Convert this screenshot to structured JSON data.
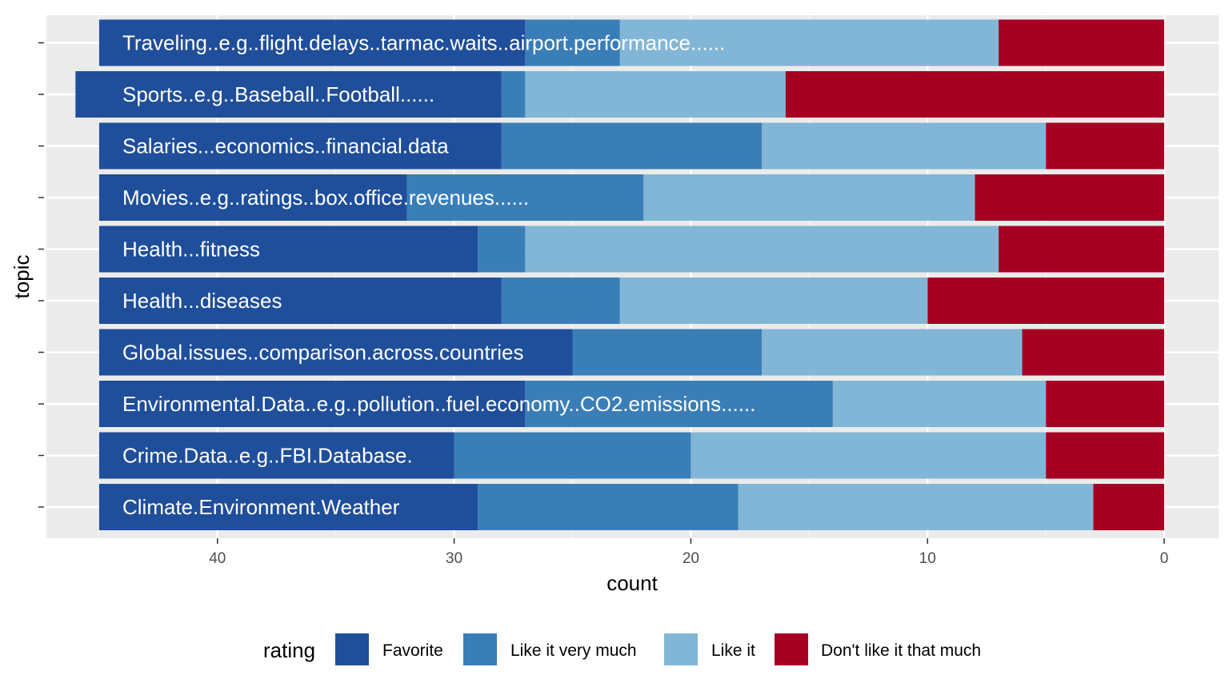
{
  "chart_data": {
    "type": "bar",
    "orientation": "horizontal",
    "stacked": true,
    "x_reversed": true,
    "xlabel": "count",
    "ylabel": "topic",
    "xlim": [
      0,
      45
    ],
    "x_ticks": [
      40,
      30,
      20,
      10,
      0
    ],
    "grid": true,
    "legend_title": "rating",
    "legend_position": "bottom",
    "categories": [
      "Climate.Environment.Weather",
      "Crime.Data..e.g..FBI.Database.",
      "Environmental.Data..e.g..pollution..fuel.economy..CO2.emissions......",
      "Global.issues..comparison.across.countries",
      "Health...diseases",
      "Health...fitness",
      "Movies..e.g..ratings..box.office.revenues......",
      "Salaries...economics..financial.data",
      "Sports..e.g..Baseball..Football......",
      "Traveling..e.g..flight.delays..tarmac.waits..airport.performance......"
    ],
    "series": [
      {
        "name": "Favorite",
        "color": "#1f4e9a",
        "values": [
          16,
          15,
          18,
          20,
          17,
          16,
          13,
          17,
          18,
          18
        ]
      },
      {
        "name": "Like it very much",
        "color": "#3a7eb8",
        "values": [
          11,
          10,
          13,
          8,
          5,
          2,
          10,
          11,
          1,
          4
        ]
      },
      {
        "name": "Like it",
        "color": "#82b6d6",
        "values": [
          15,
          15,
          9,
          11,
          13,
          20,
          14,
          12,
          11,
          16
        ]
      },
      {
        "name": "Don't like it that much",
        "color": "#a50022",
        "values": [
          3,
          5,
          5,
          6,
          10,
          7,
          8,
          5,
          16,
          7
        ]
      }
    ]
  }
}
